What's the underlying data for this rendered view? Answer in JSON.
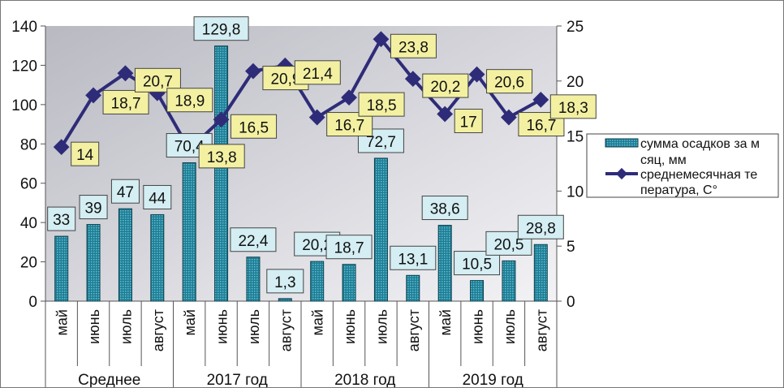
{
  "chart_data": {
    "type": "bar+line",
    "categories": [
      "май",
      "июнь",
      "июль",
      "август",
      "май",
      "июнь",
      "июль",
      "август",
      "май",
      "июнь",
      "июль",
      "август",
      "май",
      "июнь",
      "июль",
      "август"
    ],
    "groups": [
      {
        "label": "Среднее",
        "span": 4
      },
      {
        "label": "2017 год",
        "span": 4
      },
      {
        "label": "2018 год",
        "span": 4
      },
      {
        "label": "2019 год",
        "span": 4
      }
    ],
    "series": [
      {
        "name": "сумма осадков за месяц, мм",
        "type": "bar",
        "axis": "left",
        "color": "#2a8aa0",
        "values": [
          33,
          39,
          47,
          44,
          70.4,
          129.8,
          22.4,
          1.3,
          20.2,
          18.7,
          72.7,
          13.1,
          38.6,
          10.5,
          20.5,
          28.8
        ],
        "labels": [
          "33",
          "39",
          "47",
          "44",
          "70,4",
          "129,8",
          "22,4",
          "1,3",
          "20,2",
          "18,7",
          "72,7",
          "13,1",
          "38,6",
          "10,5",
          "20,5",
          "28,8"
        ]
      },
      {
        "name": "среднемесячная температура, С°",
        "type": "line",
        "axis": "right",
        "color": "#2e2c78",
        "values": [
          14,
          18.7,
          20.7,
          18.9,
          13.8,
          16.5,
          20.9,
          21.4,
          16.7,
          18.5,
          23.8,
          20.2,
          17,
          20.6,
          16.7,
          18.3
        ],
        "labels": [
          "14",
          "18,7",
          "20,7",
          "18,9",
          "13,8",
          "16,5",
          "20,9",
          "21,4",
          "16,7",
          "18,5",
          "23,8",
          "20,2",
          "17",
          "20,6",
          "16,7",
          "18,3"
        ]
      }
    ],
    "ylim_left": [
      0,
      140
    ],
    "yticks_left": [
      "0",
      "20",
      "40",
      "60",
      "80",
      "100",
      "120",
      "140"
    ],
    "ylim_right": [
      0,
      25
    ],
    "yticks_right": [
      "0",
      "5",
      "10",
      "15",
      "20",
      "25"
    ],
    "legend": "right"
  }
}
